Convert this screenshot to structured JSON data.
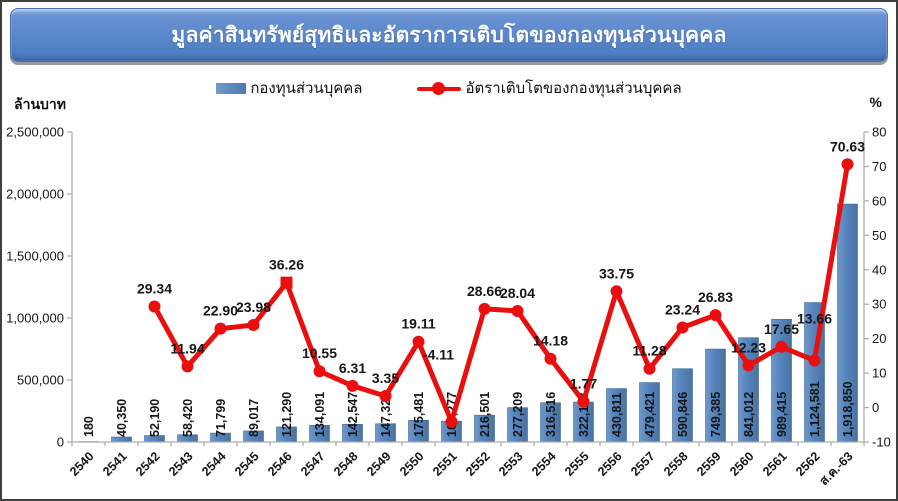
{
  "legend": {
    "bar_label": "กองทุนส่วนบุคคล",
    "line_label": "อัตราเติบโตของกองทุนส่วนบุคคล"
  },
  "axes": {
    "left_unit": "ล้านบาท",
    "right_unit": "%"
  },
  "chart_data": {
    "type": "bar+line combo",
    "title": "มูลค่าสินทรัพย์สุทธิและอัตราการเติบโตของกองทุนส่วนบุคคล",
    "legend_position": "top",
    "grid": false,
    "categories": [
      "2540",
      "2541",
      "2542",
      "2543",
      "2544",
      "2545",
      "2546",
      "2547",
      "2548",
      "2549",
      "2550",
      "2551",
      "2552",
      "2553",
      "2554",
      "2555",
      "2556",
      "2557",
      "2558",
      "2559",
      "2560",
      "2561",
      "2562",
      "ส.ค.-63"
    ],
    "series": [
      {
        "name": "กองทุนส่วนบุคคล",
        "type": "bar",
        "axis": "left",
        "color": "#5583bc",
        "values": [
          180,
          40350,
          52190,
          58420,
          71799,
          89017,
          121290,
          134091,
          142547,
          147328,
          175481,
          168277,
          216501,
          277209,
          316516,
          322118,
          430811,
          479421,
          590846,
          749385,
          841012,
          989415,
          1124581,
          1918850
        ],
        "value_labels": [
          "180",
          "40,350",
          "52,190",
          "58,420",
          "71,799",
          "89,017",
          "121,290",
          "134,091",
          "142,547",
          "147,328",
          "175,481",
          "168,277",
          "216,501",
          "277,209",
          "316,516",
          "322,118",
          "430,811",
          "479,421",
          "590,846",
          "749,385",
          "841,012",
          "989,415",
          "1,124,581",
          "1,918,850"
        ]
      },
      {
        "name": "อัตราเติบโตของกองทุนส่วนบุคคล",
        "type": "line",
        "axis": "right",
        "color": "#e90f0f",
        "values": [
          null,
          null,
          29.34,
          11.94,
          22.9,
          23.98,
          36.26,
          10.55,
          6.31,
          3.35,
          19.11,
          -4.11,
          28.66,
          28.04,
          14.18,
          1.77,
          33.75,
          11.28,
          23.24,
          26.83,
          12.23,
          17.65,
          13.66,
          70.63
        ],
        "value_labels": [
          null,
          null,
          "29.34",
          "11.94",
          "22.90",
          "23.98",
          "36.26",
          "10.55",
          "6.31",
          "3.35",
          "19.11",
          "-4.11",
          "28.66",
          "28.04",
          "14.18",
          "1.77",
          "33.75",
          "11.28",
          "23.24",
          "26.83",
          "12.23",
          "17.65",
          "13.66",
          "70.63"
        ],
        "marker_shapes": [
          "none",
          "none",
          "circle",
          "circle",
          "circle",
          "circle",
          "square",
          "circle",
          "circle",
          "circle",
          "circle",
          "circle",
          "circle",
          "circle",
          "circle",
          "circle",
          "circle",
          "circle",
          "circle",
          "circle",
          "circle",
          "circle",
          "circle",
          "circle"
        ]
      }
    ],
    "left_axis": {
      "min": 0,
      "max": 2500000,
      "step": 500000,
      "unit": "ล้านบาท",
      "tick_labels": [
        "0",
        "500,000",
        "1,000,000",
        "1,500,000",
        "2,000,000",
        "2,500,000"
      ]
    },
    "right_axis": {
      "min": -10,
      "max": 80,
      "step": 10,
      "unit": "%",
      "tick_labels": [
        "-10",
        "0",
        "10",
        "20",
        "30",
        "40",
        "50",
        "60",
        "70",
        "80"
      ]
    }
  }
}
